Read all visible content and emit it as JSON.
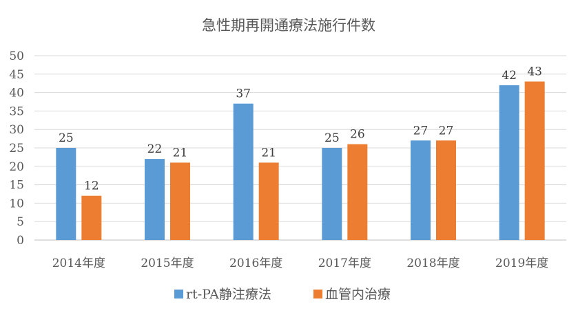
{
  "chart_data": {
    "type": "bar",
    "title": "急性期再開通療法施行件数",
    "categories": [
      "2014年度",
      "2015年度",
      "2016年度",
      "2017年度",
      "2018年度",
      "2019年度"
    ],
    "series": [
      {
        "name": "rt-PA静注療法",
        "color": "#5B9BD5",
        "values": [
          25,
          22,
          37,
          25,
          27,
          42
        ]
      },
      {
        "name": "血管内治療",
        "color": "#ED7D31",
        "values": [
          12,
          21,
          21,
          26,
          27,
          43
        ]
      }
    ],
    "xlabel": "",
    "ylabel": "",
    "ylim": [
      0,
      50
    ],
    "yticks": [
      "0",
      "5",
      "10",
      "15",
      "20",
      "25",
      "30",
      "35",
      "40",
      "45",
      "50"
    ],
    "grid": true,
    "legend_position": "bottom",
    "data_labels": true
  }
}
